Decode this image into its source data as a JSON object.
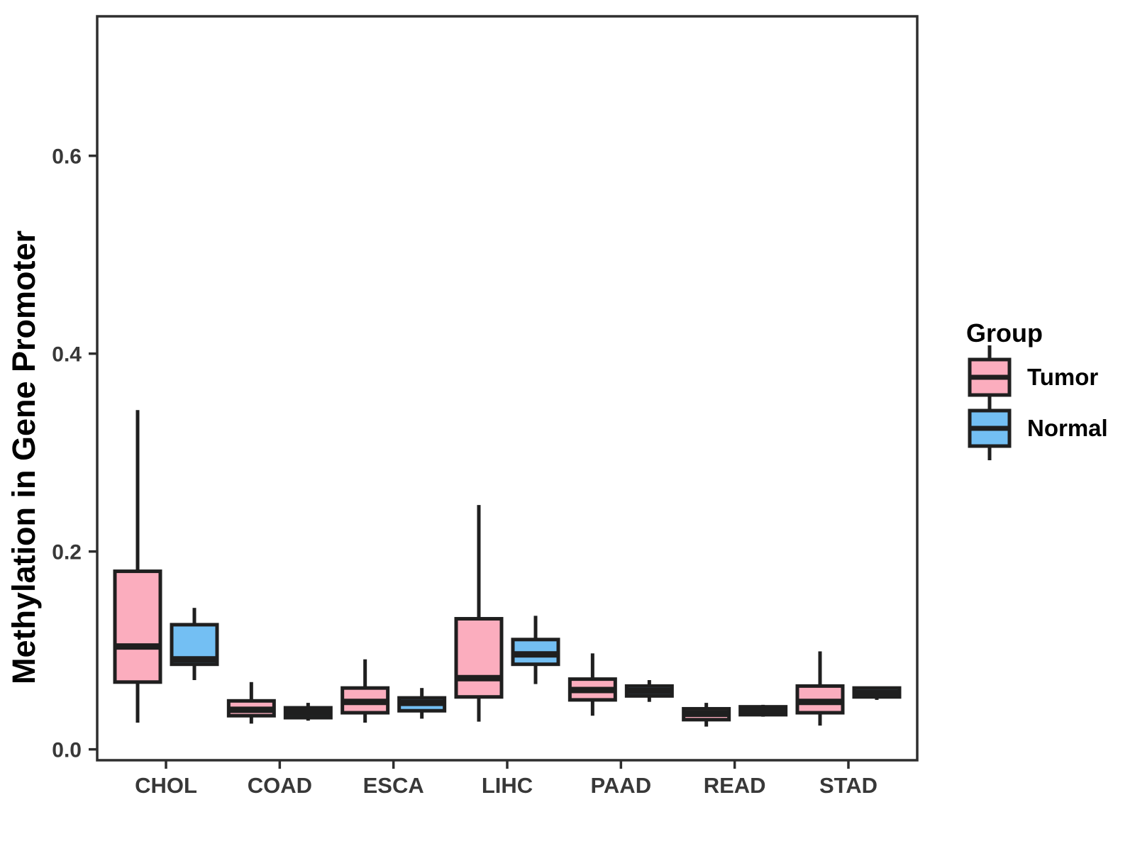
{
  "figure": {
    "background": "#FFFFFF",
    "ylabel": "Methylation in Gene Promoter"
  },
  "legend": {
    "title": "Group",
    "items": [
      {
        "label": "Tumor",
        "color": "#FBADBE"
      },
      {
        "label": "Normal",
        "color": "#73BFF3"
      }
    ]
  },
  "chart_data": {
    "type": "boxplot",
    "title": "",
    "xlabel": "",
    "ylabel": "Methylation in Gene Promoter",
    "categories": [
      "CHOL",
      "COAD",
      "ESCA",
      "LIHC",
      "PAAD",
      "READ",
      "STAD"
    ],
    "y_ticks": [
      0.0,
      0.2,
      0.4,
      0.6
    ],
    "y_tick_labels": [
      "0.0",
      "0.2",
      "0.4",
      "0.6"
    ],
    "ylim": [
      -0.011,
      0.741
    ],
    "grid": false,
    "legend_position": "right",
    "groups": [
      "Tumor",
      "Normal"
    ],
    "series": [
      {
        "name": "Tumor",
        "color": "#FBADBE",
        "boxes": [
          {
            "category": "CHOL",
            "min": 0.027,
            "q1": 0.068,
            "median": 0.104,
            "q3": 0.18,
            "max": 0.343
          },
          {
            "category": "COAD",
            "min": 0.026,
            "q1": 0.034,
            "median": 0.04,
            "q3": 0.049,
            "max": 0.068
          },
          {
            "category": "ESCA",
            "min": 0.027,
            "q1": 0.037,
            "median": 0.048,
            "q3": 0.062,
            "max": 0.091
          },
          {
            "category": "LIHC",
            "min": 0.028,
            "q1": 0.053,
            "median": 0.072,
            "q3": 0.132,
            "max": 0.247
          },
          {
            "category": "PAAD",
            "min": 0.034,
            "q1": 0.05,
            "median": 0.06,
            "q3": 0.071,
            "max": 0.097
          },
          {
            "category": "READ",
            "min": 0.023,
            "q1": 0.03,
            "median": 0.036,
            "q3": 0.041,
            "max": 0.047
          },
          {
            "category": "STAD",
            "min": 0.024,
            "q1": 0.037,
            "median": 0.048,
            "q3": 0.064,
            "max": 0.099
          }
        ]
      },
      {
        "name": "Normal",
        "color": "#73BFF3",
        "boxes": [
          {
            "category": "CHOL",
            "min": 0.07,
            "q1": 0.086,
            "median": 0.091,
            "q3": 0.126,
            "max": 0.143
          },
          {
            "category": "COAD",
            "min": 0.029,
            "q1": 0.032,
            "median": 0.037,
            "q3": 0.042,
            "max": 0.047
          },
          {
            "category": "ESCA",
            "min": 0.031,
            "q1": 0.039,
            "median": 0.047,
            "q3": 0.052,
            "max": 0.062
          },
          {
            "category": "LIHC",
            "min": 0.066,
            "q1": 0.086,
            "median": 0.096,
            "q3": 0.111,
            "max": 0.135
          },
          {
            "category": "PAAD",
            "min": 0.048,
            "q1": 0.054,
            "median": 0.059,
            "q3": 0.064,
            "max": 0.07
          },
          {
            "category": "READ",
            "min": 0.033,
            "q1": 0.035,
            "median": 0.039,
            "q3": 0.043,
            "max": 0.045
          },
          {
            "category": "STAD",
            "min": 0.05,
            "q1": 0.053,
            "median": 0.057,
            "q3": 0.062,
            "max": 0.063
          }
        ]
      }
    ]
  }
}
